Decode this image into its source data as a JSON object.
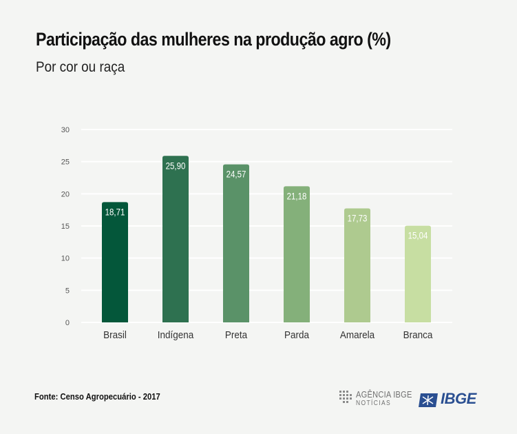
{
  "header": {
    "title": "Participação das mulheres na produção agro (%)",
    "subtitle": "Por cor ou raça"
  },
  "footer": {
    "source": "Fonte: Censo Agropecuário - 2017",
    "agencia_line1": "AGÊNCIA IBGE",
    "agencia_line2": "NOTÍCIAS",
    "ibge_logo": "IBGE"
  },
  "colors": {
    "background": "#f4f5f3",
    "ibge_blue": "#2a4f91"
  },
  "chart_data": {
    "type": "bar",
    "categories": [
      "Brasil",
      "Indígena",
      "Preta",
      "Parda",
      "Amarela",
      "Branca"
    ],
    "values": [
      18.71,
      25.9,
      24.57,
      21.18,
      17.73,
      15.04
    ],
    "data_labels": [
      "18,71",
      "25,90",
      "24,57",
      "21,18",
      "17,73",
      "15,04"
    ],
    "bar_colors": [
      "#04573a",
      "#2e7150",
      "#5a9268",
      "#84b07a",
      "#aeca8f",
      "#c7dea2"
    ],
    "yticks": [
      0,
      5,
      10,
      15,
      20,
      25,
      30
    ],
    "ylim": [
      0,
      30
    ],
    "grid": true,
    "legend": "none"
  }
}
